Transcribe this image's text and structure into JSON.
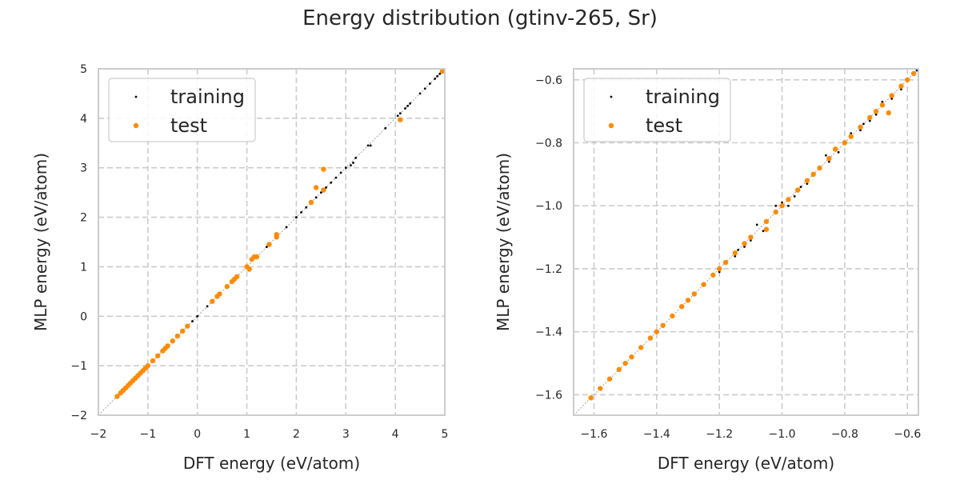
{
  "title": "Energy distribution (gtinv-265, Sr)",
  "colors": {
    "training": "#000000",
    "test": "#ff8c00",
    "grid": "#cccccc",
    "axes": "#cccccc"
  },
  "chart_data": [
    {
      "type": "scatter",
      "xlabel": "DFT energy (eV/atom)",
      "ylabel": "MLP energy (eV/atom)",
      "xlim": [
        -2,
        5
      ],
      "ylim": [
        -2,
        5
      ],
      "xticks": [
        -2,
        -1,
        0,
        1,
        2,
        3,
        4,
        5
      ],
      "yticks": [
        -2,
        -1,
        0,
        1,
        2,
        3,
        4,
        5
      ],
      "tick_labels_x": [
        "−2",
        "−1",
        "0",
        "1",
        "2",
        "3",
        "4",
        "5"
      ],
      "tick_labels_y": [
        "−2",
        "−1",
        "0",
        "1",
        "2",
        "3",
        "4",
        "5"
      ],
      "grid": true,
      "legend": {
        "placement": "upper-left",
        "entries": [
          "training",
          "test"
        ]
      },
      "series": [
        {
          "name": "training",
          "points": [
            [
              -1.6,
              -1.6
            ],
            [
              -1.4,
              -1.4
            ],
            [
              -1.2,
              -1.2
            ],
            [
              -1.0,
              -1.0
            ],
            [
              -0.8,
              -0.8
            ],
            [
              -0.6,
              -0.6
            ],
            [
              -0.4,
              -0.4
            ],
            [
              -0.2,
              -0.2
            ],
            [
              -0.1,
              -0.1
            ],
            [
              0.0,
              0.0
            ],
            [
              0.2,
              0.2
            ],
            [
              0.4,
              0.4
            ],
            [
              0.6,
              0.6
            ],
            [
              0.8,
              0.8
            ],
            [
              1.0,
              1.0
            ],
            [
              1.2,
              1.2
            ],
            [
              1.4,
              1.4
            ],
            [
              1.6,
              1.6
            ],
            [
              1.8,
              1.8
            ],
            [
              2.0,
              2.0
            ],
            [
              2.1,
              2.1
            ],
            [
              2.2,
              2.2
            ],
            [
              2.3,
              2.3
            ],
            [
              2.4,
              2.4
            ],
            [
              2.5,
              2.5
            ],
            [
              2.6,
              2.6
            ],
            [
              2.7,
              2.7
            ],
            [
              2.8,
              2.8
            ],
            [
              2.9,
              2.9
            ],
            [
              3.0,
              3.0
            ],
            [
              3.1,
              3.05
            ],
            [
              3.15,
              3.1
            ],
            [
              3.2,
              3.2
            ],
            [
              3.45,
              3.45
            ],
            [
              3.5,
              3.45
            ],
            [
              3.8,
              3.8
            ],
            [
              4.05,
              4.05
            ],
            [
              4.1,
              4.1
            ],
            [
              4.2,
              4.2
            ],
            [
              4.25,
              4.25
            ],
            [
              4.3,
              4.3
            ],
            [
              4.5,
              4.5
            ],
            [
              4.6,
              4.6
            ],
            [
              4.7,
              4.7
            ],
            [
              4.8,
              4.8
            ],
            [
              4.85,
              4.85
            ],
            [
              4.9,
              4.9
            ]
          ]
        },
        {
          "name": "test",
          "points": [
            [
              -1.62,
              -1.62
            ],
            [
              -1.55,
              -1.55
            ],
            [
              -1.5,
              -1.5
            ],
            [
              -1.45,
              -1.45
            ],
            [
              -1.4,
              -1.4
            ],
            [
              -1.35,
              -1.35
            ],
            [
              -1.3,
              -1.3
            ],
            [
              -1.25,
              -1.25
            ],
            [
              -1.2,
              -1.2
            ],
            [
              -1.15,
              -1.15
            ],
            [
              -1.1,
              -1.1
            ],
            [
              -1.05,
              -1.05
            ],
            [
              -1.0,
              -1.0
            ],
            [
              -0.9,
              -0.9
            ],
            [
              -0.8,
              -0.8
            ],
            [
              -0.7,
              -0.7
            ],
            [
              -0.65,
              -0.65
            ],
            [
              -0.6,
              -0.6
            ],
            [
              -0.5,
              -0.5
            ],
            [
              -0.4,
              -0.4
            ],
            [
              -0.3,
              -0.3
            ],
            [
              -0.2,
              -0.2
            ],
            [
              0.3,
              0.3
            ],
            [
              0.4,
              0.4
            ],
            [
              0.45,
              0.45
            ],
            [
              0.6,
              0.6
            ],
            [
              0.7,
              0.7
            ],
            [
              0.75,
              0.75
            ],
            [
              0.8,
              0.8
            ],
            [
              1.0,
              1.0
            ],
            [
              1.1,
              1.15
            ],
            [
              1.15,
              1.2
            ],
            [
              1.2,
              1.2
            ],
            [
              1.05,
              0.95
            ],
            [
              1.45,
              1.45
            ],
            [
              1.6,
              1.6
            ],
            [
              1.6,
              1.65
            ],
            [
              2.3,
              2.3
            ],
            [
              2.4,
              2.6
            ],
            [
              2.55,
              2.55
            ],
            [
              2.55,
              2.97
            ],
            [
              4.1,
              3.97
            ],
            [
              4.95,
              4.95
            ]
          ]
        }
      ]
    },
    {
      "type": "scatter",
      "xlabel": "DFT energy (eV/atom)",
      "ylabel": "MLP energy (eV/atom)",
      "xlim": [
        -1.665,
        -0.565
      ],
      "ylim": [
        -1.665,
        -0.565
      ],
      "xticks": [
        -1.6,
        -1.4,
        -1.2,
        -1.0,
        -0.8,
        -0.6
      ],
      "yticks": [
        -1.6,
        -1.4,
        -1.2,
        -1.0,
        -0.8,
        -0.6
      ],
      "tick_labels_x": [
        "−1.6",
        "−1.4",
        "−1.2",
        "−1.0",
        "−0.8",
        "−0.6"
      ],
      "tick_labels_y": [
        "−1.6",
        "−1.4",
        "−1.2",
        "−1.0",
        "−0.8",
        "−0.6"
      ],
      "grid": true,
      "legend": {
        "placement": "upper-left",
        "entries": [
          "training",
          "test"
        ]
      },
      "series": [
        {
          "name": "training",
          "points": [
            [
              -1.2,
              -1.21
            ],
            [
              -1.15,
              -1.16
            ],
            [
              -1.12,
              -1.13
            ],
            [
              -1.1,
              -1.11
            ],
            [
              -1.06,
              -1.08
            ],
            [
              -1.02,
              -1.0
            ],
            [
              -1.0,
              -0.99
            ],
            [
              -0.98,
              -1.0
            ],
            [
              -0.96,
              -0.97
            ],
            [
              -0.92,
              -0.93
            ],
            [
              -0.9,
              -0.9
            ],
            [
              -0.88,
              -0.88
            ],
            [
              -0.85,
              -0.86
            ],
            [
              -0.82,
              -0.83
            ],
            [
              -0.8,
              -0.8
            ],
            [
              -0.78,
              -0.77
            ],
            [
              -0.75,
              -0.76
            ],
            [
              -0.72,
              -0.73
            ],
            [
              -0.7,
              -0.71
            ],
            [
              -0.68,
              -0.67
            ],
            [
              -0.65,
              -0.66
            ],
            [
              -0.62,
              -0.63
            ],
            [
              -0.6,
              -0.6
            ],
            [
              -0.58,
              -0.58
            ],
            [
              -0.57,
              -0.57
            ],
            [
              -1.14,
              -1.14
            ],
            [
              -1.08,
              -1.06
            ],
            [
              -0.94,
              -0.94
            ],
            [
              -0.86,
              -0.84
            ],
            [
              -0.74,
              -0.74
            ]
          ]
        },
        {
          "name": "test",
          "points": [
            [
              -1.61,
              -1.61
            ],
            [
              -1.58,
              -1.58
            ],
            [
              -1.55,
              -1.55
            ],
            [
              -1.52,
              -1.52
            ],
            [
              -1.5,
              -1.5
            ],
            [
              -1.48,
              -1.48
            ],
            [
              -1.45,
              -1.45
            ],
            [
              -1.42,
              -1.42
            ],
            [
              -1.4,
              -1.4
            ],
            [
              -1.38,
              -1.38
            ],
            [
              -1.35,
              -1.35
            ],
            [
              -1.32,
              -1.32
            ],
            [
              -1.3,
              -1.3
            ],
            [
              -1.28,
              -1.28
            ],
            [
              -1.25,
              -1.25
            ],
            [
              -1.22,
              -1.22
            ],
            [
              -1.2,
              -1.2
            ],
            [
              -1.18,
              -1.18
            ],
            [
              -1.15,
              -1.15
            ],
            [
              -1.12,
              -1.12
            ],
            [
              -1.1,
              -1.1
            ],
            [
              -1.05,
              -1.05
            ],
            [
              -1.02,
              -1.02
            ],
            [
              -1.0,
              -1.0
            ],
            [
              -0.98,
              -0.98
            ],
            [
              -0.95,
              -0.95
            ],
            [
              -0.92,
              -0.92
            ],
            [
              -0.9,
              -0.9
            ],
            [
              -0.88,
              -0.88
            ],
            [
              -0.85,
              -0.85
            ],
            [
              -0.83,
              -0.82
            ],
            [
              -0.8,
              -0.8
            ],
            [
              -0.78,
              -0.78
            ],
            [
              -0.75,
              -0.75
            ],
            [
              -0.72,
              -0.72
            ],
            [
              -0.7,
              -0.7
            ],
            [
              -0.68,
              -0.68
            ],
            [
              -0.65,
              -0.65
            ],
            [
              -0.62,
              -0.62
            ],
            [
              -0.6,
              -0.6
            ],
            [
              -0.58,
              -0.58
            ],
            [
              -0.66,
              -0.705
            ],
            [
              -1.05,
              -1.075
            ]
          ]
        }
      ]
    }
  ]
}
